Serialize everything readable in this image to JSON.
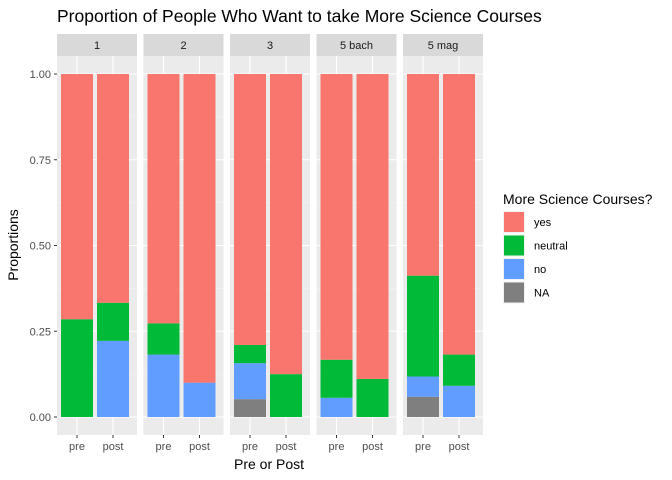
{
  "chart_data": {
    "type": "bar",
    "stacked": true,
    "title": "Proportion of People Who Want to take More Science Courses",
    "xlabel": "Pre or Post",
    "ylabel": "Proportions",
    "ylim": [
      0,
      1
    ],
    "y_ticks": [
      "0.00",
      "0.25",
      "0.50",
      "0.75",
      "1.00"
    ],
    "y_tick_values": [
      0,
      0.25,
      0.5,
      0.75,
      1
    ],
    "categories": [
      "pre",
      "post"
    ],
    "facets": [
      "1",
      "2",
      "3",
      "5 bach",
      "5 mag"
    ],
    "legend_title": "More Science Courses?",
    "legend_position": "right",
    "grid": true,
    "series": [
      {
        "name": "yes",
        "color": "#F8766D",
        "values": [
          [
            0.715,
            0.667
          ],
          [
            0.727,
            0.9
          ],
          [
            0.79,
            0.875
          ],
          [
            0.833,
            0.889
          ],
          [
            0.588,
            0.818
          ]
        ]
      },
      {
        "name": "neutral",
        "color": "#00BA38",
        "values": [
          [
            0.285,
            0.111
          ],
          [
            0.091,
            0.0
          ],
          [
            0.053,
            0.125
          ],
          [
            0.111,
            0.111
          ],
          [
            0.294,
            0.091
          ]
        ]
      },
      {
        "name": "no",
        "color": "#619CFF",
        "values": [
          [
            0.0,
            0.222
          ],
          [
            0.182,
            0.1
          ],
          [
            0.105,
            0.0
          ],
          [
            0.056,
            0.0
          ],
          [
            0.059,
            0.091
          ]
        ]
      },
      {
        "name": "NA",
        "color": "#7F7F7F",
        "values": [
          [
            0.0,
            0.0
          ],
          [
            0.0,
            0.0
          ],
          [
            0.052,
            0.0
          ],
          [
            0.0,
            0.0
          ],
          [
            0.059,
            0.0
          ]
        ]
      }
    ]
  }
}
